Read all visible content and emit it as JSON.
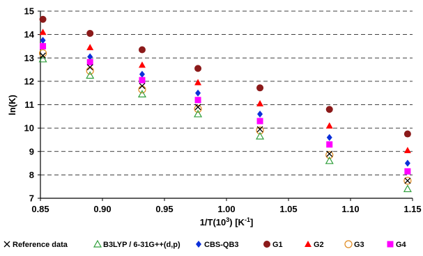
{
  "chart_data": {
    "type": "scatter",
    "title": "",
    "xlabel": "1/T(10",
    "xlabel_sup1": "3",
    "xlabel_mid": ") [K",
    "xlabel_sup2": "-1",
    "xlabel_end": "]",
    "ylabel": "ln(K)",
    "xlim": [
      0.85,
      1.15
    ],
    "ylim": [
      7,
      15
    ],
    "x_ticks": [
      "0.85",
      "0.90",
      "0.95",
      "1.00",
      "1.05",
      "1.10",
      "1.15"
    ],
    "y_ticks": [
      "7",
      "8",
      "9",
      "10",
      "11",
      "12",
      "13",
      "14",
      "15"
    ],
    "grid": "horizontal dashed",
    "legend_position": "bottom",
    "x": [
      0.852,
      0.89,
      0.932,
      0.977,
      1.027,
      1.083,
      1.146
    ],
    "series": [
      {
        "name": "Reference data",
        "marker": "x",
        "color": "#000000",
        "values": [
          13.1,
          12.6,
          11.8,
          10.9,
          9.95,
          8.9,
          7.75
        ]
      },
      {
        "name": "B3LYP / 6-31G++(d,p)",
        "marker": "triangle-open",
        "color": "#2e9e3a",
        "values": [
          12.95,
          12.25,
          11.45,
          10.6,
          9.65,
          8.6,
          7.4
        ]
      },
      {
        "name": "CBS-QB3",
        "marker": "diamond",
        "color": "#0b2fd9",
        "values": [
          13.75,
          13.05,
          12.3,
          11.5,
          10.6,
          9.6,
          8.5
        ]
      },
      {
        "name": "G1",
        "marker": "circle",
        "color": "#8b1a1a",
        "values": [
          14.65,
          14.05,
          13.35,
          12.55,
          11.72,
          10.8,
          9.75
        ]
      },
      {
        "name": "G2",
        "marker": "triangle",
        "color": "#ff0000",
        "values": [
          14.1,
          13.45,
          12.7,
          11.95,
          11.05,
          10.1,
          9.05
        ]
      },
      {
        "name": "G3",
        "marker": "circle-open",
        "color": "#e08a1e",
        "values": [
          13.2,
          12.45,
          11.65,
          10.82,
          9.9,
          8.85,
          7.75
        ]
      },
      {
        "name": "G4",
        "marker": "square",
        "color": "#ff00ff",
        "values": [
          13.5,
          12.82,
          12.05,
          11.2,
          10.3,
          9.3,
          8.15
        ]
      }
    ]
  }
}
